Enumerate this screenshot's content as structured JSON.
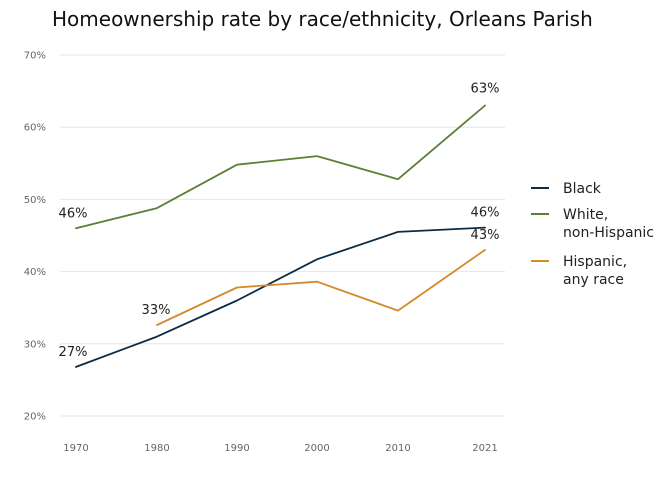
{
  "chart_data": {
    "type": "line",
    "title": "Homeownership rate by race/ethnicity, Orleans Parish",
    "x": [
      1970,
      1980,
      1990,
      2000,
      2010,
      2021
    ],
    "x_tick_labels": [
      "1970",
      "1980",
      "1990",
      "2000",
      "2010",
      "2021"
    ],
    "ylim": [
      20,
      70
    ],
    "y_ticks": [
      20,
      30,
      40,
      50,
      60,
      70
    ],
    "y_tick_labels": [
      "20%",
      "30%",
      "40%",
      "50%",
      "60%",
      "70%"
    ],
    "grid": "horizontal",
    "legend": "right",
    "series": [
      {
        "name": "Black",
        "name_lines": [
          "Black"
        ],
        "color": "#0d2c44",
        "values": [
          26.8,
          31.0,
          36.0,
          41.7,
          45.5,
          46.1
        ],
        "labels": [
          {
            "index": 0,
            "text": "27%"
          },
          {
            "index": 5,
            "text": "46%"
          }
        ]
      },
      {
        "name": "White, non-Hispanic",
        "name_lines": [
          "White,",
          "non-Hispanic"
        ],
        "color": "#5b8034",
        "values": [
          46.0,
          48.8,
          54.8,
          56.0,
          52.8,
          63.0
        ],
        "labels": [
          {
            "index": 0,
            "text": "46%"
          },
          {
            "index": 5,
            "text": "63%"
          }
        ]
      },
      {
        "name": "Hispanic, any race",
        "name_lines": [
          "Hispanic,",
          "any race"
        ],
        "color": "#d4892a",
        "values": [
          null,
          32.6,
          37.8,
          38.6,
          34.6,
          43.0
        ],
        "labels": [
          {
            "index": 1,
            "text": "33%"
          },
          {
            "index": 5,
            "text": "43%"
          }
        ]
      }
    ]
  }
}
